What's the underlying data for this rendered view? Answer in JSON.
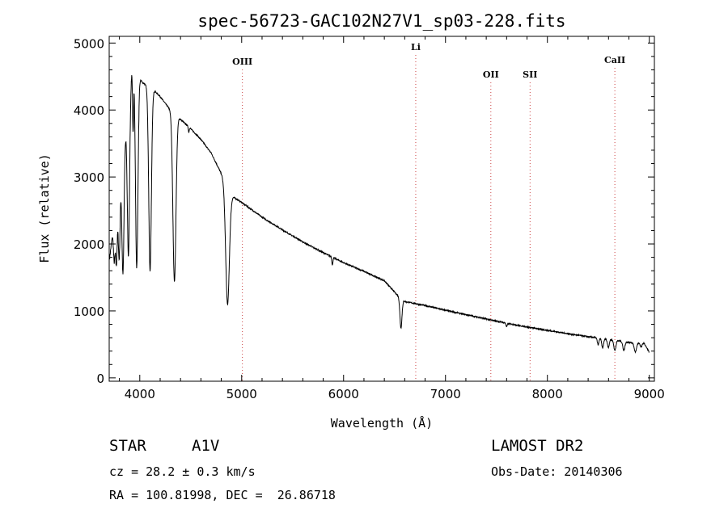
{
  "chart_data": {
    "type": "line",
    "title": "spec-56723-GAC102N27V1_sp03-228.fits",
    "xlabel": "Wavelength (Å)",
    "ylabel": "Flux (relative)",
    "xlim": [
      3700,
      9050
    ],
    "ylim": [
      -50,
      5100
    ],
    "xticks": [
      4000,
      5000,
      6000,
      7000,
      8000,
      9000
    ],
    "xtick_labels": [
      "4000",
      "5000",
      "6000",
      "7000",
      "8000",
      "9000"
    ],
    "yticks": [
      0,
      1000,
      2000,
      3000,
      4000,
      5000
    ],
    "ytick_labels": [
      "0",
      "1000",
      "2000",
      "3000",
      "4000",
      "5000"
    ],
    "x_minor_step": 200,
    "y_minor_step": 200,
    "continuum": [
      [
        3705,
        1800
      ],
      [
        3770,
        2600
      ],
      [
        3840,
        3300
      ],
      [
        3880,
        4000
      ],
      [
        3930,
        4700
      ],
      [
        3970,
        4550
      ],
      [
        4030,
        4400
      ],
      [
        4100,
        4350
      ],
      [
        4200,
        4200
      ],
      [
        4300,
        4000
      ],
      [
        4400,
        3860
      ],
      [
        4500,
        3720
      ],
      [
        4600,
        3560
      ],
      [
        4700,
        3360
      ],
      [
        4800,
        3050
      ],
      [
        4900,
        2720
      ],
      [
        5000,
        2620
      ],
      [
        5200,
        2400
      ],
      [
        5400,
        2210
      ],
      [
        5600,
        2030
      ],
      [
        5800,
        1870
      ],
      [
        6000,
        1720
      ],
      [
        6200,
        1590
      ],
      [
        6400,
        1450
      ],
      [
        6550,
        1200
      ],
      [
        6600,
        1140
      ],
      [
        6800,
        1080
      ],
      [
        7000,
        1010
      ],
      [
        7200,
        945
      ],
      [
        7400,
        880
      ],
      [
        7600,
        815
      ],
      [
        7800,
        760
      ],
      [
        8000,
        710
      ],
      [
        8200,
        660
      ],
      [
        8400,
        615
      ],
      [
        8600,
        575
      ],
      [
        8800,
        530
      ],
      [
        8950,
        515
      ],
      [
        9000,
        380
      ]
    ],
    "absorption_lines": [
      {
        "center": 3750,
        "depth": 600,
        "width": 8
      },
      {
        "center": 3771,
        "depth": 900,
        "width": 8
      },
      {
        "center": 3798,
        "depth": 1100,
        "width": 9
      },
      {
        "center": 3835,
        "depth": 1700,
        "width": 10
      },
      {
        "center": 3889,
        "depth": 2300,
        "width": 11
      },
      {
        "center": 3934,
        "depth": 1000,
        "width": 5
      },
      {
        "center": 3970,
        "depth": 2900,
        "width": 12
      },
      {
        "center": 4101,
        "depth": 2750,
        "width": 13
      },
      {
        "center": 4340,
        "depth": 2500,
        "width": 15
      },
      {
        "center": 4481,
        "depth": 80,
        "width": 4
      },
      {
        "center": 4861,
        "depth": 1750,
        "width": 18
      },
      {
        "center": 5890,
        "depth": 120,
        "width": 5
      },
      {
        "center": 6563,
        "depth": 440,
        "width": 10
      },
      {
        "center": 7600,
        "depth": 50,
        "width": 6
      },
      {
        "center": 8498,
        "depth": 100,
        "width": 8
      },
      {
        "center": 8542,
        "depth": 140,
        "width": 9
      },
      {
        "center": 8598,
        "depth": 120,
        "width": 9
      },
      {
        "center": 8662,
        "depth": 150,
        "width": 10
      },
      {
        "center": 8750,
        "depth": 130,
        "width": 10
      },
      {
        "center": 8863,
        "depth": 140,
        "width": 11
      },
      {
        "center": 8920,
        "depth": 60,
        "width": 8
      }
    ],
    "line_markers": [
      {
        "label": "OIII",
        "wavelength": 5007
      },
      {
        "label": "Li",
        "wavelength": 6708
      },
      {
        "label": "OII",
        "wavelength": 7445
      },
      {
        "label": "SII",
        "wavelength": 7830
      },
      {
        "label": "CaII",
        "wavelength": 8662
      }
    ]
  },
  "info": {
    "object_class": "STAR",
    "subclass": "A1V",
    "survey": "LAMOST DR2",
    "cz": "cz = 28.2 ± 0.3 km/s",
    "obs_date": "Obs-Date: 20140306",
    "coords": "RA = 100.81998, DEC =  26.86718"
  }
}
